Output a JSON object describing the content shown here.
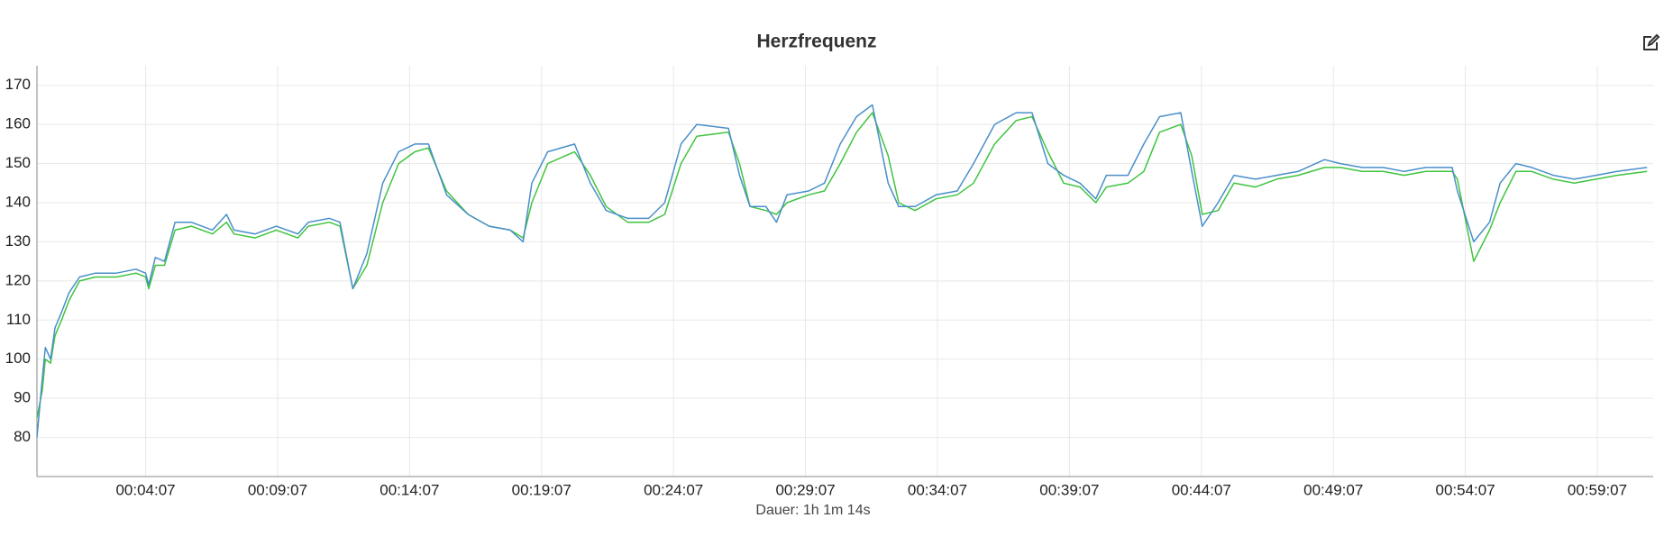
{
  "chart_data": {
    "type": "line",
    "title": "Herzfrequenz",
    "xlabel": "Dauer: 1h 1m 14s",
    "x": [
      0,
      12,
      19,
      31,
      41,
      56,
      73,
      97,
      133,
      181,
      225,
      247,
      254,
      269,
      290,
      314,
      351,
      399,
      431,
      448,
      496,
      544,
      593,
      617,
      665,
      689,
      718,
      750,
      786,
      822,
      859,
      890,
      931,
      980,
      1028,
      1076,
      1105,
      1125,
      1161,
      1222,
      1258,
      1294,
      1343,
      1391,
      1427,
      1464,
      1500,
      1572,
      1597,
      1621,
      1657,
      1681,
      1705,
      1754,
      1790,
      1826,
      1863,
      1899,
      1935,
      1959,
      1996,
      2044,
      2092,
      2129,
      2177,
      2226,
      2262,
      2298,
      2334,
      2371,
      2407,
      2431,
      2480,
      2516,
      2552,
      2600,
      2625,
      2649,
      2685,
      2721,
      2770,
      2818,
      2867,
      2927,
      2963,
      3012,
      3060,
      3108,
      3157,
      3217,
      3229,
      3266,
      3302,
      3326,
      3362,
      3398,
      3447,
      3495,
      3544,
      3592,
      3660
    ],
    "series": [
      {
        "color": "#3fc43f",
        "values": [
          85,
          92,
          100,
          99,
          106,
          110,
          115,
          120,
          121,
          121,
          122,
          121,
          118,
          124,
          124,
          133,
          134,
          132,
          135,
          132,
          131,
          133,
          131,
          134,
          135,
          134,
          118,
          124,
          140,
          150,
          153,
          154,
          143,
          137,
          134,
          133,
          131,
          140,
          150,
          153,
          147,
          139,
          135,
          135,
          137,
          150,
          157,
          158,
          150,
          139,
          138,
          137,
          140,
          142,
          143,
          150,
          158,
          163,
          152,
          140,
          138,
          141,
          142,
          145,
          155,
          161,
          162,
          153,
          145,
          144,
          140,
          144,
          145,
          148,
          158,
          160,
          152,
          137,
          138,
          145,
          144,
          146,
          147,
          149,
          149,
          148,
          148,
          147,
          148,
          148,
          146,
          125,
          133,
          140,
          148,
          148,
          146,
          145,
          146,
          147,
          148
        ]
      },
      {
        "color": "#4a8fc9",
        "values": [
          80,
          95,
          103,
          100,
          108,
          112,
          117,
          121,
          122,
          122,
          123,
          122,
          119,
          126,
          125,
          135,
          135,
          133,
          137,
          133,
          132,
          134,
          132,
          135,
          136,
          135,
          118,
          127,
          145,
          153,
          155,
          155,
          142,
          137,
          134,
          133,
          130,
          145,
          153,
          155,
          145,
          138,
          136,
          136,
          140,
          155,
          160,
          159,
          147,
          139,
          139,
          135,
          142,
          143,
          145,
          155,
          162,
          165,
          145,
          139,
          139,
          142,
          143,
          150,
          160,
          163,
          163,
          150,
          147,
          145,
          141,
          147,
          147,
          155,
          162,
          163,
          148,
          134,
          140,
          147,
          146,
          147,
          148,
          151,
          150,
          149,
          149,
          148,
          149,
          149,
          143,
          130,
          135,
          145,
          150,
          149,
          147,
          146,
          147,
          148,
          149
        ]
      }
    ],
    "xlim": [
      0,
      3674
    ],
    "ylim": [
      70,
      175
    ],
    "xticks": [
      {
        "value": 247,
        "label": "00:04:07"
      },
      {
        "value": 547,
        "label": "00:09:07"
      },
      {
        "value": 847,
        "label": "00:14:07"
      },
      {
        "value": 1147,
        "label": "00:19:07"
      },
      {
        "value": 1447,
        "label": "00:24:07"
      },
      {
        "value": 1747,
        "label": "00:29:07"
      },
      {
        "value": 2047,
        "label": "00:34:07"
      },
      {
        "value": 2347,
        "label": "00:39:07"
      },
      {
        "value": 2647,
        "label": "00:44:07"
      },
      {
        "value": 2947,
        "label": "00:49:07"
      },
      {
        "value": 3247,
        "label": "00:54:07"
      },
      {
        "value": 3547,
        "label": "00:59:07"
      }
    ],
    "yticks": [
      80,
      90,
      100,
      110,
      120,
      130,
      140,
      150,
      160,
      170
    ],
    "grid": true
  }
}
